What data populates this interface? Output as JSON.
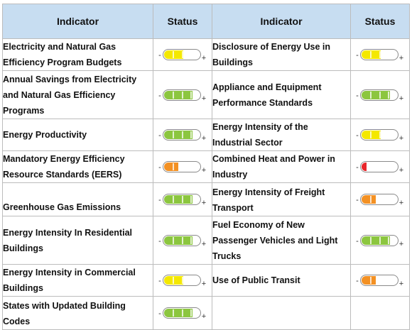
{
  "header": {
    "left_indicator": "Indicator",
    "left_status": "Status",
    "right_indicator": "Indicator",
    "right_status": "Status"
  },
  "gauge_signs": {
    "minus": "-",
    "plus": "+"
  },
  "status_colors": {
    "yellow": "#f4e800",
    "green": "#8cc63f",
    "orange": "#f39124",
    "red": "#e8262b"
  },
  "rows": [
    {
      "left": {
        "indicator": "Electricity and Natural Gas Efficiency Program Budgets",
        "status": "yellow",
        "level": 0.55
      },
      "right": {
        "indicator": "Disclosure of Energy Use in Buildings",
        "status": "yellow",
        "level": 0.55
      }
    },
    {
      "left": {
        "indicator": "Annual Savings from Electricity and Natural Gas Efficiency Programs",
        "status": "green",
        "level": 0.82
      },
      "right": {
        "indicator": "Appliance and Equipment Performance Standards",
        "status": "green",
        "level": 0.82
      }
    },
    {
      "left": {
        "indicator": "Energy Productivity",
        "status": "green",
        "level": 0.82
      },
      "right": {
        "indicator": "Energy Intensity of the Industrial Sector",
        "status": "yellow",
        "level": 0.55
      }
    },
    {
      "left": {
        "indicator": "Mandatory Energy Efficiency Resource Standards (EERS)",
        "status": "orange",
        "level": 0.4
      },
      "right": {
        "indicator": "Combined Heat and Power in Industry",
        "status": "red",
        "level": 0.15
      }
    },
    {
      "left": {
        "indicator": "Greenhouse Gas Emissions",
        "status": "green",
        "level": 0.82
      },
      "right": {
        "indicator": "Energy Intensity of Freight Transport",
        "status": "orange",
        "level": 0.4
      }
    },
    {
      "left": {
        "indicator": "Energy Intensity In Residential Buildings",
        "status": "green",
        "level": 0.82
      },
      "right": {
        "indicator": "Fuel Economy of New Passenger Vehicles and Light Trucks",
        "status": "green",
        "level": 0.82
      }
    },
    {
      "left": {
        "indicator": "Energy Intensity in Commercial Buildings",
        "status": "yellow",
        "level": 0.55
      },
      "right": {
        "indicator": "Use of Public Transit",
        "status": "orange",
        "level": 0.4
      }
    },
    {
      "left": {
        "indicator": "States with Updated Building Codes",
        "status": "green",
        "level": 0.82
      },
      "right": null
    }
  ]
}
